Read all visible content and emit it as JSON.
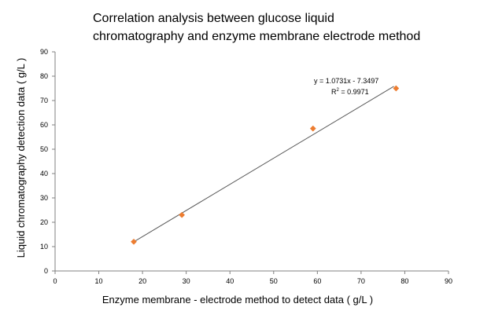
{
  "chart_data": {
    "type": "scatter",
    "title_lines": [
      "Correlation analysis between glucose liquid",
      "chromatography and enzyme membrane electrode method"
    ],
    "xlabel": "Enzyme membrane - electrode method to detect data ( g/L )",
    "ylabel": "Liquid chromatography detection data ( g/L )",
    "xlim": [
      0,
      90
    ],
    "ylim": [
      0,
      90
    ],
    "xticks": [
      "0",
      "10",
      "20",
      "30",
      "40",
      "50",
      "60",
      "70",
      "80",
      "90"
    ],
    "yticks": [
      "0",
      "10",
      "20",
      "30",
      "40",
      "50",
      "60",
      "70",
      "80",
      "90"
    ],
    "grid": false,
    "series": [
      {
        "points": [
          {
            "x": 18,
            "y": 12
          },
          {
            "x": 29,
            "y": 23
          },
          {
            "x": 59,
            "y": 58.5
          },
          {
            "x": 78,
            "y": 75
          }
        ],
        "color": "#ED7D31",
        "marker": "diamond"
      }
    ],
    "trendline": {
      "type": "linear",
      "slope": 1.0731,
      "intercept": -7.3497,
      "x_range": [
        18,
        77.5
      ],
      "color": "#595959"
    },
    "annotations": {
      "equation": "y = 1.0731x - 7.3497",
      "r2_prefix": "R",
      "r2_sup": "2",
      "r2_value": " = 0.9971"
    }
  }
}
